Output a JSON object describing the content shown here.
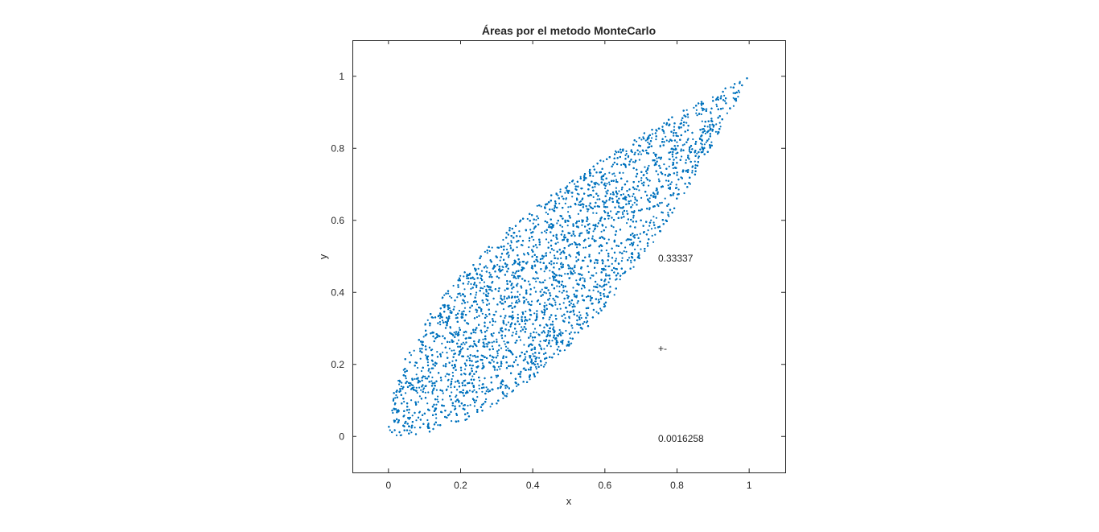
{
  "chart_data": {
    "type": "scatter",
    "title": "Áreas por el metodo MonteCarlo",
    "xlabel": "x",
    "ylabel": "y",
    "xlim": [
      -0.1,
      1.1
    ],
    "ylim": [
      -0.1,
      1.1
    ],
    "xticks": [
      0,
      0.2,
      0.4,
      0.6,
      0.8,
      1
    ],
    "yticks": [
      0,
      0.2,
      0.4,
      0.6,
      0.8,
      1
    ],
    "xtick_labels": [
      "0",
      "0.2",
      "0.4",
      "0.6",
      "0.8",
      "1"
    ],
    "ytick_labels": [
      "0",
      "0.2",
      "0.4",
      "0.6",
      "0.8",
      "1"
    ],
    "grid": false,
    "marker_color": "#0072BD",
    "region": {
      "upper_curve": "y = sqrt(x)",
      "lower_curve": "y = x^2",
      "x_range": [
        0,
        1
      ],
      "sample_points": 12000
    },
    "annotations": [
      {
        "text": "0.33337",
        "x": 0.75,
        "y": 0.5
      },
      {
        "text": "+-",
        "x": 0.75,
        "y": 0.25
      },
      {
        "text": "0.0016258",
        "x": 0.75,
        "y": 0.0
      }
    ]
  }
}
